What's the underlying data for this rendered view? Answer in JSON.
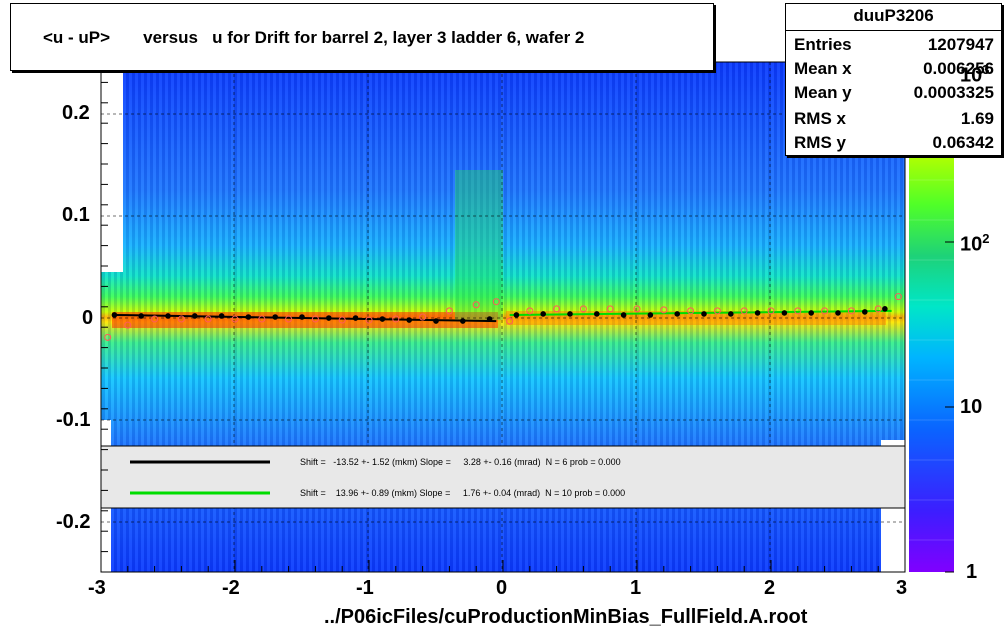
{
  "title": "<u - uP>       versus   u for Drift for barrel 2, layer 3 ladder 6, wafer 2",
  "stats": {
    "name": "duuP3206",
    "rows": [
      {
        "label": "Entries",
        "value": "1207947"
      },
      {
        "label": "Mean x",
        "value": "0.006256"
      },
      {
        "label": "Mean y",
        "value": "0.0003325"
      },
      {
        "label": "RMS x",
        "value": "1.69"
      },
      {
        "label": "RMS y",
        "value": "0.06342"
      }
    ]
  },
  "fit_legend": [
    {
      "color": "#000000",
      "text": "Shift =   -13.52 +- 1.52 (mkm) Slope =     3.28 +- 0.16 (mrad)  N = 6 prob = 0.000"
    },
    {
      "color": "#00dd00",
      "text": "Shift =    13.96 +- 0.89 (mkm) Slope =     1.76 +- 0.04 (mrad)  N = 10 prob = 0.000"
    }
  ],
  "x_axis": {
    "ticks": [
      "-3",
      "-2",
      "-1",
      "0",
      "1",
      "2",
      "3"
    ],
    "title": "../P06icFiles/cuProductionMinBias_FullField.A.root"
  },
  "y_axis": {
    "ticks": [
      "0.2",
      "0.1",
      "0",
      "-0.1",
      "-0.2"
    ]
  },
  "colorbar": {
    "labels": [
      "1",
      "10",
      "10^2",
      "10^3"
    ]
  },
  "chart_data": {
    "type": "heatmap",
    "title": "<u - uP>       versus   u for Drift for barrel 2, layer 3 ladder 6, wafer 2",
    "xlabel": "../P06icFiles/cuProductionMinBias_FullField.A.root",
    "ylabel": "",
    "xlim": [
      -3,
      3
    ],
    "ylim": [
      -0.25,
      0.25
    ],
    "z_scale": "log",
    "zlim": [
      1,
      1000
    ],
    "grid": true,
    "profile_black": {
      "x": [
        -2.9,
        -2.7,
        -2.5,
        -2.3,
        -2.1,
        -1.9,
        -1.7,
        -1.5,
        -1.3,
        -1.1,
        -0.9,
        -0.7,
        -0.5,
        -0.3,
        -0.1,
        0.1,
        0.3,
        0.5,
        0.7,
        0.9,
        1.1,
        1.3,
        1.5,
        1.7,
        1.9,
        2.1,
        2.3,
        2.5,
        2.7,
        2.85
      ],
      "y": [
        0.002,
        0.001,
        0.001,
        0.001,
        0.001,
        0.0,
        0.0,
        0.0,
        -0.001,
        -0.001,
        -0.002,
        -0.003,
        -0.004,
        -0.004,
        -0.002,
        0.002,
        0.003,
        0.003,
        0.003,
        0.002,
        0.002,
        0.003,
        0.003,
        0.003,
        0.004,
        0.004,
        0.004,
        0.004,
        0.005,
        0.008
      ]
    },
    "profile_red": {
      "x": [
        -2.95,
        -2.8,
        -2.6,
        -2.4,
        -2.2,
        -2.0,
        -1.8,
        -1.6,
        -1.4,
        -1.2,
        -1.0,
        -0.8,
        -0.6,
        -0.4,
        -0.2,
        -0.05,
        0.05,
        0.2,
        0.4,
        0.6,
        0.8,
        1.0,
        1.2,
        1.4,
        1.6,
        1.8,
        2.0,
        2.2,
        2.4,
        2.6,
        2.8,
        2.95
      ],
      "y": [
        -0.02,
        -0.008,
        -0.002,
        -0.002,
        -0.002,
        -0.002,
        -0.002,
        -0.002,
        -0.002,
        -0.003,
        -0.003,
        -0.002,
        0.0,
        0.006,
        0.012,
        0.015,
        -0.004,
        0.006,
        0.008,
        0.008,
        0.008,
        0.008,
        0.007,
        0.006,
        0.006,
        0.006,
        0.006,
        0.006,
        0.006,
        0.006,
        0.008,
        0.02
      ]
    }
  }
}
